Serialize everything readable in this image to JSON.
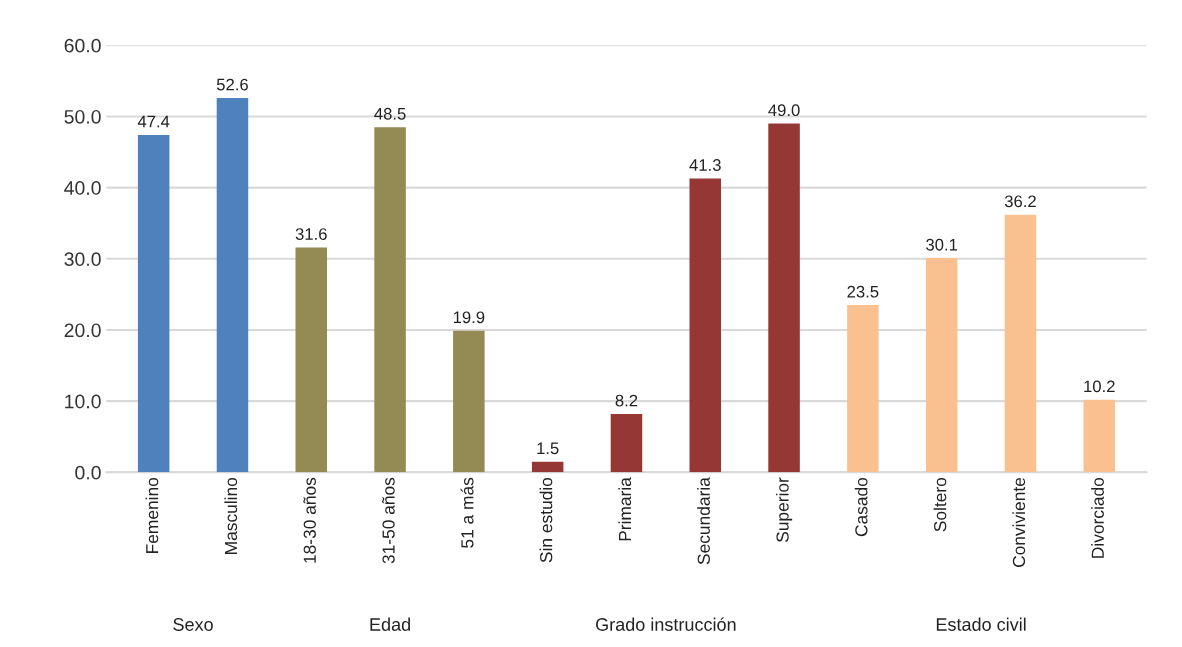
{
  "chart_data": {
    "type": "bar",
    "categories": [
      "Femenino",
      "Masculino",
      "18-30 años",
      "31-50 años",
      "51 a más",
      "Sin estudio",
      "Primaria",
      "Secundaria",
      "Superior",
      "Casado",
      "Soltero",
      "Conviviente",
      "Divorciado"
    ],
    "values": [
      47.4,
      52.6,
      31.6,
      48.5,
      19.9,
      1.5,
      8.2,
      41.3,
      49.0,
      23.5,
      30.1,
      36.2,
      10.2
    ],
    "value_labels": [
      "47.4",
      "52.6",
      "31.6",
      "48.5",
      "19.9",
      "1.5",
      "8.2",
      "41.3",
      "49.0",
      "23.5",
      "30.1",
      "36.2",
      "10.2"
    ],
    "colors": [
      "#4f81bd",
      "#4f81bd",
      "#948a54",
      "#948a54",
      "#948a54",
      "#953735",
      "#953735",
      "#953735",
      "#953735",
      "#fac090",
      "#fac090",
      "#fac090",
      "#fac090"
    ],
    "annotations": [
      "Sexo",
      "Edad",
      "Grado instrucción",
      "Estado civil"
    ],
    "ylim": [
      0,
      60
    ],
    "yticks": [
      {
        "value": 0,
        "label": "0.0"
      },
      {
        "value": 10,
        "label": "10.0"
      },
      {
        "value": 20,
        "label": "20.0"
      },
      {
        "value": 30,
        "label": "30.0"
      },
      {
        "value": 40,
        "label": "40.0"
      },
      {
        "value": 50,
        "label": "50.0"
      },
      {
        "value": 60,
        "label": "60.0"
      }
    ],
    "grid": "y",
    "legend": false
  }
}
